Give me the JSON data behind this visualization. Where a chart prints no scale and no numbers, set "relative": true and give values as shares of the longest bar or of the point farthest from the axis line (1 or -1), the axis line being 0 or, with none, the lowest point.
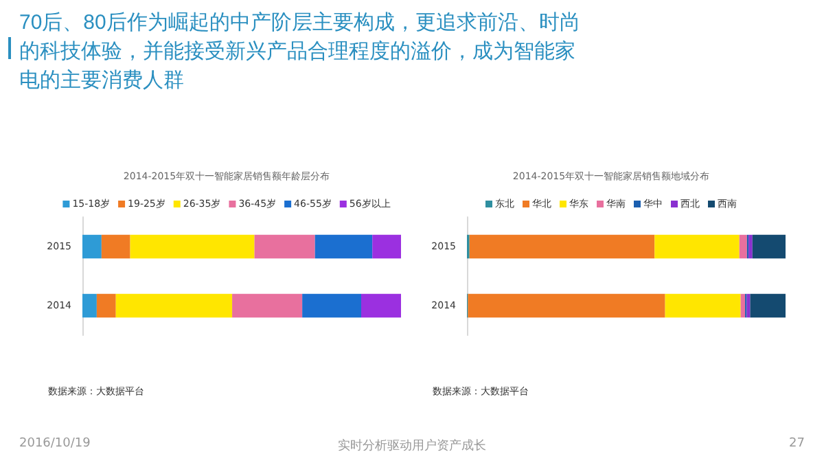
{
  "chart_data": [
    {
      "type": "bar",
      "orientation": "horizontal",
      "stacked": true,
      "relative": true,
      "legend": "top",
      "title": "2014-2015年双十一智能家居销售额年龄层分布",
      "categories": [
        "2015",
        "2014"
      ],
      "series": [
        {
          "name": "15-18岁",
          "color": "#2e9bd6",
          "values": [
            0.06,
            0.045
          ]
        },
        {
          "name": "19-25岁",
          "color": "#f07b24",
          "values": [
            0.09,
            0.06
          ]
        },
        {
          "name": "26-35岁",
          "color": "#ffe600",
          "values": [
            0.39,
            0.365
          ]
        },
        {
          "name": "36-45岁",
          "color": "#e8709e",
          "values": [
            0.19,
            0.22
          ]
        },
        {
          "name": "46-55岁",
          "color": "#1b6fd0",
          "values": [
            0.18,
            0.185
          ]
        },
        {
          "name": "56岁以上",
          "color": "#9b30e0",
          "values": [
            0.09,
            0.125
          ]
        }
      ],
      "annotations": [
        "70后、80后作为崛起的中产阶层主要构成，更追求前沿、时尚的科技体验，并能接受新兴产品合理程度的溢价，成为智能家电的主要消费人群",
        "数据来源：大数据平台",
        "2016/10/19",
        "实时分析驱动用户资产成长",
        "27"
      ]
    },
    {
      "type": "bar",
      "orientation": "horizontal",
      "stacked": true,
      "relative": true,
      "legend": "top",
      "title": "2014-2015年双十一智能家居销售额地域分布",
      "categories": [
        "2015",
        "2014"
      ],
      "series": [
        {
          "name": "东北",
          "color": "#2f8fa0",
          "values": [
            0.008,
            0.003
          ]
        },
        {
          "name": "华北",
          "color": "#f07b24",
          "values": [
            0.581,
            0.619
          ]
        },
        {
          "name": "华东",
          "color": "#ffe600",
          "values": [
            0.266,
            0.237
          ]
        },
        {
          "name": "华南",
          "color": "#e8709e",
          "values": [
            0.024,
            0.014
          ]
        },
        {
          "name": "华中",
          "color": "#1b5fb0",
          "values": [
            0.005,
            0.005
          ]
        },
        {
          "name": "西北",
          "color": "#8a30d0",
          "values": [
            0.012,
            0.011
          ]
        },
        {
          "name": "西南",
          "color": "#144a70",
          "values": [
            0.104,
            0.111
          ]
        }
      ],
      "annotations": [
        "数据来源：大数据平台"
      ]
    }
  ]
}
